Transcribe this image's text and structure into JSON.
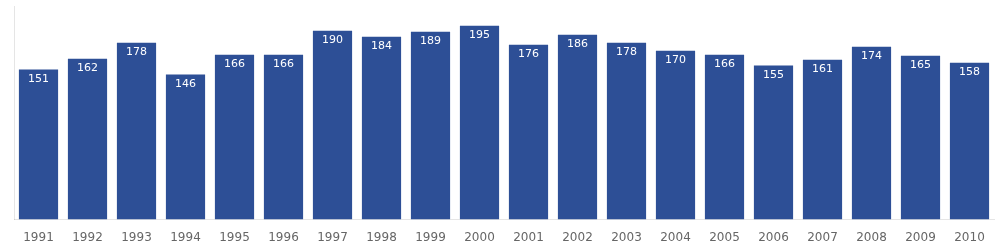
{
  "chart_data": {
    "type": "bar",
    "categories": [
      "1991",
      "1992",
      "1993",
      "1994",
      "1995",
      "1996",
      "1997",
      "1998",
      "1999",
      "2000",
      "2001",
      "2002",
      "2003",
      "2004",
      "2005",
      "2006",
      "2007",
      "2008",
      "2009",
      "2010"
    ],
    "values": [
      151,
      162,
      178,
      146,
      166,
      166,
      190,
      184,
      189,
      195,
      176,
      186,
      178,
      170,
      166,
      155,
      161,
      174,
      165,
      158
    ],
    "color": "#2d4f96",
    "ylim": [
      0,
      215
    ],
    "grid": false,
    "data_labels": true,
    "tick_labels": "x"
  }
}
